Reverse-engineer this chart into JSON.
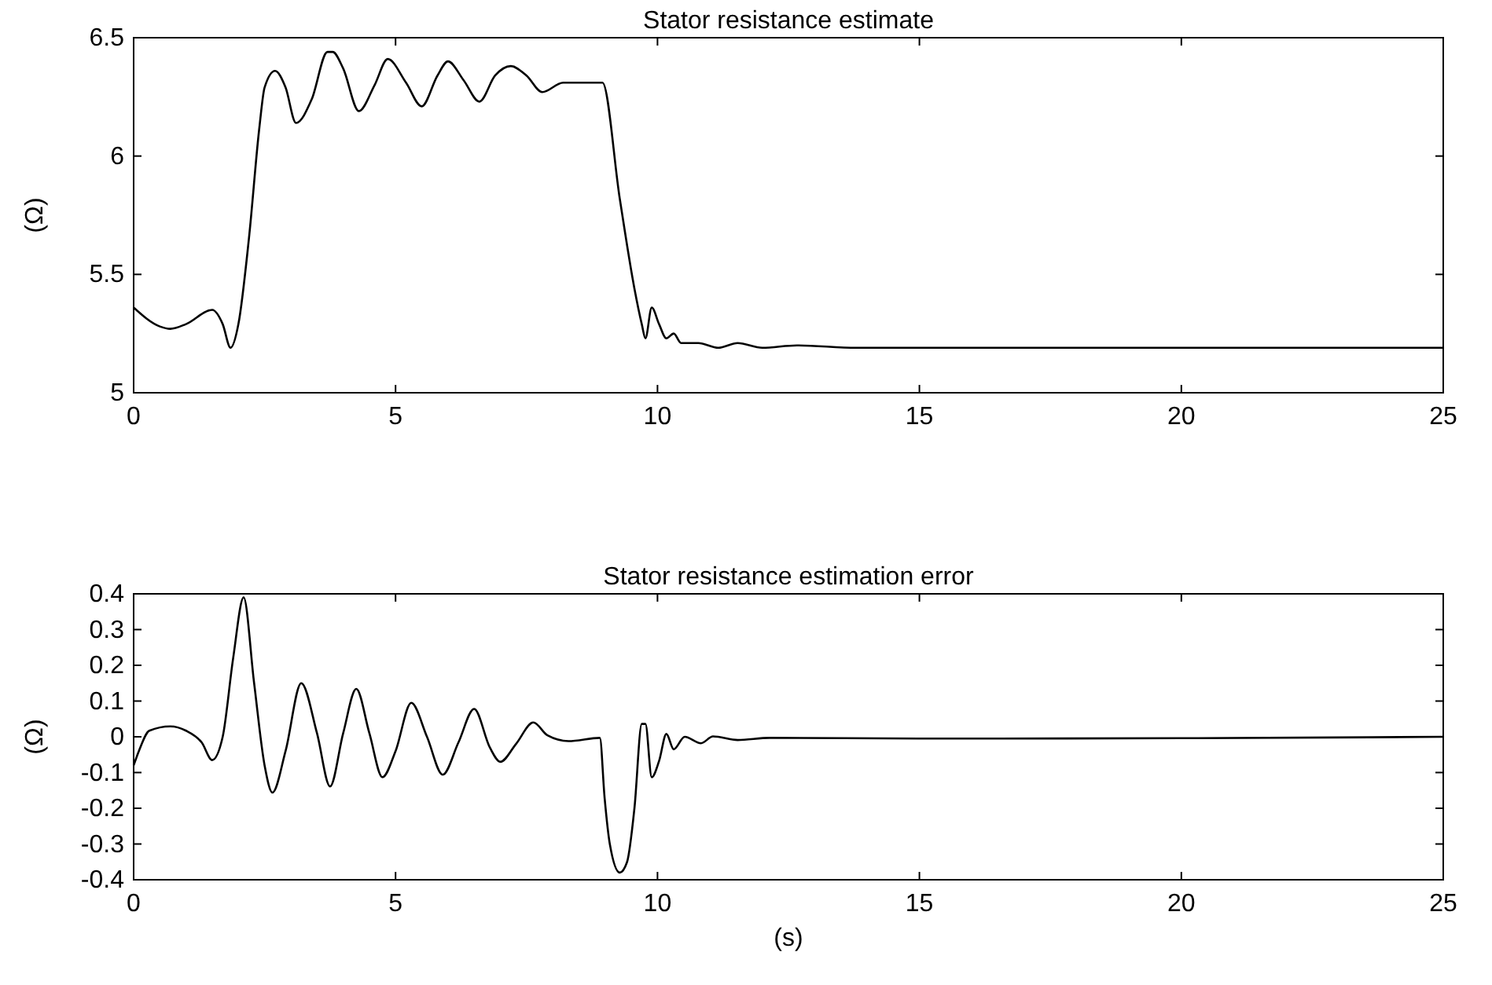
{
  "chart_data": [
    {
      "type": "line",
      "title": "Stator resistance estimate",
      "ylabel": "(Ω)",
      "xlim": [
        0,
        25
      ],
      "xticks": [
        0,
        5,
        10,
        15,
        20,
        25
      ],
      "ylim": [
        5,
        6.5
      ],
      "yticks": [
        5,
        5.5,
        6,
        6.5
      ],
      "grid": false,
      "series": [
        {
          "color": "#000000",
          "x": [
            0,
            0.5,
            0.7,
            1,
            1.5,
            1.7,
            1.85,
            2,
            2.2,
            2.4,
            2.5,
            2.7,
            2.9,
            3.1,
            3.4,
            3.7,
            3.8,
            4,
            4.3,
            4.6,
            4.85,
            5.2,
            5.5,
            5.8,
            6,
            6.3,
            6.6,
            6.9,
            7.2,
            7.5,
            7.8,
            8.2,
            8.5,
            8.95,
            9.28,
            9.56,
            9.7,
            9.77,
            9.89,
            10.03,
            10.17,
            10.31,
            10.45,
            10.78,
            11.16,
            11.53,
            12,
            12.66,
            13.8,
            15.3,
            17,
            20,
            25
          ],
          "values": [
            5.36,
            5.28,
            5.27,
            5.29,
            5.35,
            5.29,
            5.19,
            5.29,
            5.65,
            6.12,
            6.29,
            6.36,
            6.29,
            6.14,
            6.24,
            6.44,
            6.44,
            6.37,
            6.19,
            6.3,
            6.41,
            6.31,
            6.21,
            6.34,
            6.4,
            6.32,
            6.23,
            6.34,
            6.38,
            6.34,
            6.27,
            6.31,
            6.31,
            6.31,
            5.82,
            5.44,
            5.29,
            5.23,
            5.36,
            5.29,
            5.23,
            5.25,
            5.21,
            5.21,
            5.19,
            5.21,
            5.19,
            5.2,
            5.19,
            5.19,
            5.19,
            5.19,
            5.19
          ]
        }
      ]
    },
    {
      "type": "line",
      "title": "Stator resistance estimation error",
      "xlabel": "(s)",
      "ylabel": "(Ω)",
      "xlim": [
        0,
        25
      ],
      "xticks": [
        0,
        5,
        10,
        15,
        20,
        25
      ],
      "ylim": [
        -0.4,
        0.4
      ],
      "yticks": [
        -0.4,
        -0.3,
        -0.2,
        -0.1,
        0,
        0.1,
        0.2,
        0.3,
        0.4
      ],
      "grid": false,
      "series": [
        {
          "color": "#000000",
          "x": [
            0,
            0.1,
            0.3,
            0.7,
            1,
            1.3,
            1.5,
            1.7,
            1.9,
            2.1,
            2.3,
            2.5,
            2.65,
            2.9,
            3.2,
            3.5,
            3.75,
            4,
            4.25,
            4.5,
            4.75,
            5,
            5.3,
            5.6,
            5.9,
            6.2,
            6.5,
            6.8,
            7,
            7.3,
            7.63,
            7.9,
            8.3,
            8.9,
            8.99,
            9.09,
            9.28,
            9.42,
            9.56,
            9.7,
            9.77,
            9.89,
            10.03,
            10.17,
            10.31,
            10.52,
            10.83,
            11.06,
            11.53,
            12.14,
            15,
            20,
            25
          ],
          "values": [
            -0.08,
            -0.04,
            0.017,
            0.029,
            0.017,
            -0.016,
            -0.065,
            0,
            0.22,
            0.39,
            0.15,
            -0.08,
            -0.156,
            -0.04,
            0.15,
            0.01,
            -0.139,
            0.01,
            0.134,
            0.01,
            -0.113,
            -0.04,
            0.095,
            0,
            -0.106,
            -0.016,
            0.078,
            -0.03,
            -0.07,
            -0.02,
            0.04,
            0.004,
            -0.012,
            -0.003,
            -0.17,
            -0.3,
            -0.38,
            -0.35,
            -0.2,
            0.036,
            0.036,
            -0.113,
            -0.068,
            0.008,
            -0.035,
            0,
            -0.018,
            0.001,
            -0.009,
            -0.003,
            -0.005,
            -0.004,
            0
          ]
        }
      ]
    }
  ]
}
